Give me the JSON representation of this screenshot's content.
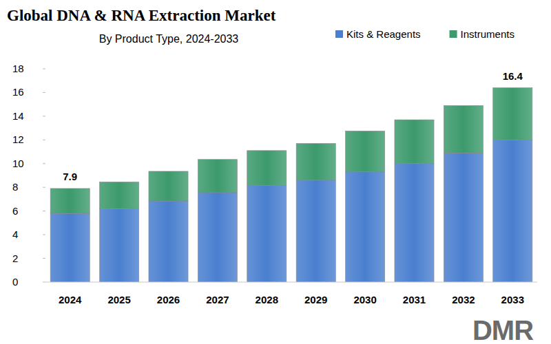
{
  "chart_data": {
    "type": "bar",
    "title": "Global DNA & RNA Extraction Market",
    "subtitle": "By Product Type, 2024-2033",
    "logo": "DMR",
    "categories": [
      "2024",
      "2025",
      "2026",
      "2027",
      "2028",
      "2029",
      "2030",
      "2031",
      "2032",
      "2033"
    ],
    "series": [
      {
        "name": "Kits & Reagents",
        "color": "#4a7fcf",
        "values": [
          5.8,
          6.2,
          6.85,
          7.55,
          8.15,
          8.6,
          9.3,
          10.0,
          10.9,
          12.0
        ]
      },
      {
        "name": "Instruments",
        "color": "#3c9a6c",
        "values": [
          2.1,
          2.25,
          2.5,
          2.8,
          2.95,
          3.1,
          3.45,
          3.7,
          4.0,
          4.4
        ]
      }
    ],
    "annotations": [
      {
        "category": "2024",
        "value": 7.9
      },
      {
        "category": "2033",
        "value": 16.4
      }
    ],
    "stacked": true,
    "grid": false,
    "legend": "top-right",
    "ylim": [
      0,
      18
    ],
    "yticks": [
      0,
      2,
      4,
      6,
      8,
      10,
      12,
      14,
      16,
      18
    ]
  }
}
